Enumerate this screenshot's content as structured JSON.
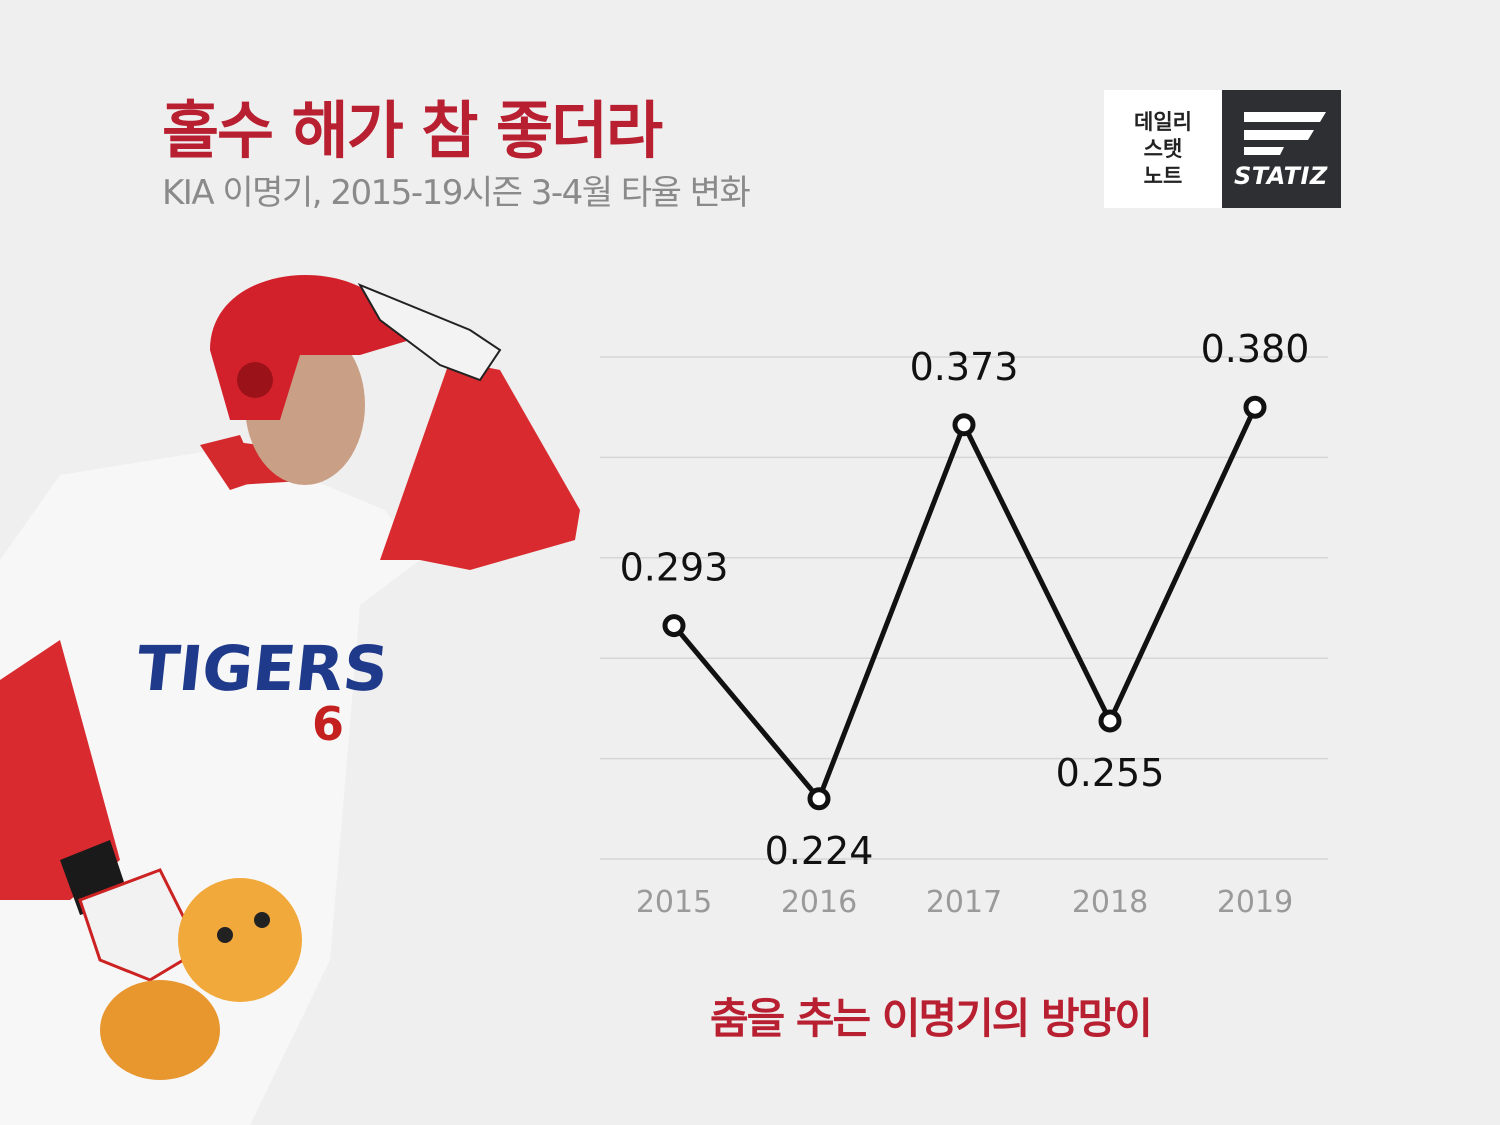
{
  "header": {
    "title": "홀수 해가 참 좋더라",
    "subtitle": "KIA 이명기, 2015-19시즌 3-4월 타율 변화"
  },
  "logo": {
    "left_lines": [
      "데일리",
      "스탯",
      "노트"
    ],
    "brand": "STATIZ"
  },
  "caption": {
    "part1": "춤을 추는",
    "part2": "이명기의 방망이"
  },
  "colors": {
    "accent": "#b81f30",
    "line": "#111111",
    "grid": "#d6d6d6",
    "axis_text": "#9a9a9a",
    "background": "#efefef"
  },
  "chart_data": {
    "type": "line",
    "title": "",
    "xlabel": "",
    "ylabel": "",
    "categories": [
      "2015",
      "2016",
      "2017",
      "2018",
      "2019"
    ],
    "series": [
      {
        "values": [
          0.293,
          0.224,
          0.373,
          0.255,
          0.38
        ],
        "labels": [
          "0.293",
          "0.224",
          "0.373",
          "0.255",
          "0.380"
        ]
      }
    ],
    "ylim": [
      0.2,
      0.4
    ],
    "grid": true,
    "legend": "none"
  }
}
